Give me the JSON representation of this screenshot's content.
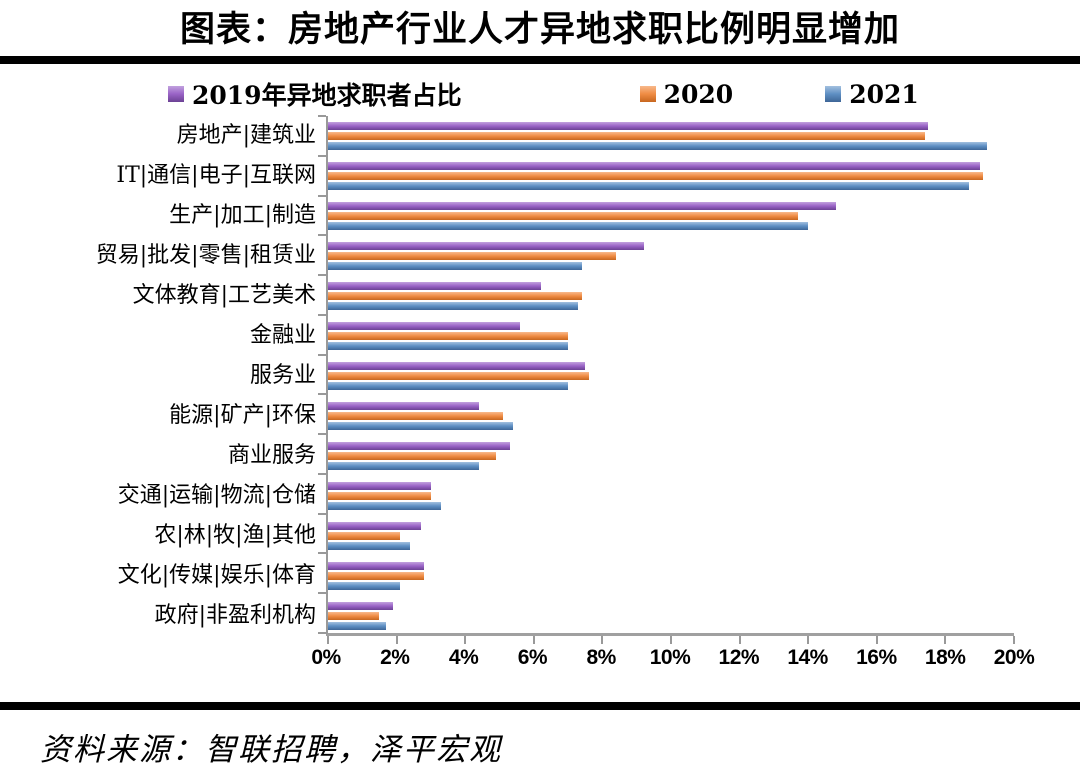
{
  "title": "图表：房地产行业人才异地求职比例明显增加",
  "footer": {
    "source_text": "资料来源：智联招聘，泽平宏观"
  },
  "chart_data": {
    "type": "bar",
    "orientation": "horizontal",
    "title": "图表：房地产行业人才异地求职比例明显增加",
    "categories": [
      "房地产|建筑业",
      "IT|通信|电子|互联网",
      "生产|加工|制造",
      "贸易|批发|零售|租赁业",
      "文体教育|工艺美术",
      "金融业",
      "服务业",
      "能源|矿产|环保",
      "商业服务",
      "交通|运输|物流|仓储",
      "农|林|牧|渔|其他",
      "文化|传媒|娱乐|体育",
      "政府|非盈利机构"
    ],
    "series": [
      {
        "name": "2019年异地求职者占比",
        "color": "#9A63C6",
        "color_light": "#C2A1DE",
        "color_dark": "#6B4294",
        "values": [
          17.5,
          19.0,
          14.8,
          9.2,
          6.2,
          5.6,
          7.5,
          4.4,
          5.3,
          3.0,
          2.7,
          2.8,
          1.9
        ]
      },
      {
        "name": "2020",
        "color": "#F08C44",
        "color_light": "#F8B98C",
        "color_dark": "#C8671F",
        "values": [
          17.4,
          19.1,
          13.7,
          8.4,
          7.4,
          7.0,
          7.6,
          5.1,
          4.9,
          3.0,
          2.1,
          2.8,
          1.5
        ]
      },
      {
        "name": "2021",
        "color": "#5E8FC3",
        "color_light": "#A3C0DF",
        "color_dark": "#3E6697",
        "values": [
          19.2,
          18.7,
          14.0,
          7.4,
          7.3,
          7.0,
          7.0,
          5.4,
          4.4,
          3.3,
          2.4,
          2.1,
          1.7
        ]
      }
    ],
    "xlim": [
      0,
      20
    ],
    "x_ticks": [
      "0%",
      "2%",
      "4%",
      "6%",
      "8%",
      "10%",
      "12%",
      "14%",
      "16%",
      "18%",
      "20%"
    ],
    "xlabel": "",
    "ylabel": "",
    "legend_position": "top",
    "grid": false,
    "unit": "percent"
  }
}
